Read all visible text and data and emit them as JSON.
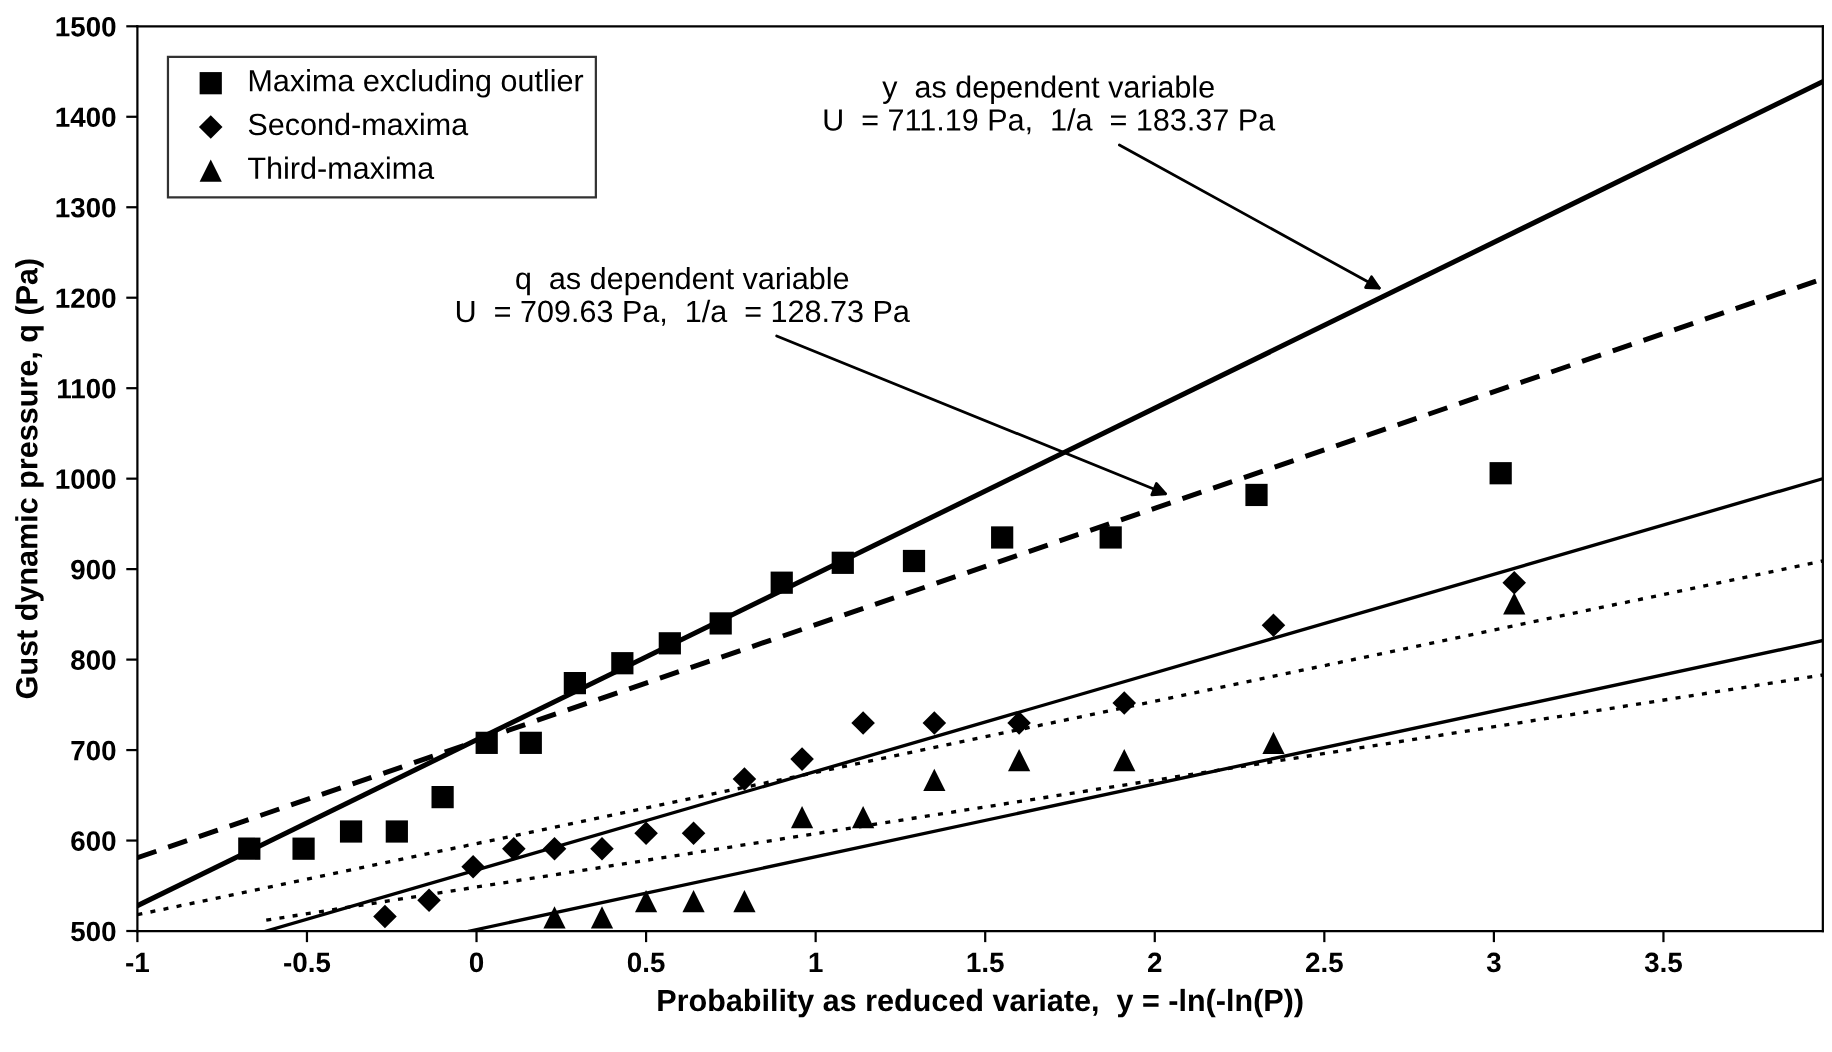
{
  "chart_data": {
    "type": "scatter",
    "xlabel": "Probability as reduced variate,  y = -ln(-ln(P))",
    "ylabel": "Gust dynamic pressure, q (Pa)",
    "xlim": [
      -1,
      3.97
    ],
    "ylim": [
      500,
      1500
    ],
    "xticks": [
      -1,
      -0.5,
      0,
      0.5,
      1,
      1.5,
      2,
      2.5,
      3,
      3.5
    ],
    "yticks": [
      500,
      600,
      700,
      800,
      900,
      1000,
      1100,
      1200,
      1300,
      1400,
      1500
    ],
    "grid": false,
    "legend": "top left",
    "annotations": [
      {
        "text": "y  as dependent variable\nU  = 711.19 Pa,  1/a  = 183.37 Pa",
        "x": 2.67,
        "y": 1209
      },
      {
        "text": "q  as dependent variable\nU  = 709.63 Pa,  1/a  = 128.73 Pa",
        "x": 2.04,
        "y": 982
      }
    ],
    "series": [
      {
        "name": "Maxima excluding outlier",
        "marker": "square",
        "color": "#000000",
        "x": [
          -0.67,
          -0.51,
          -0.37,
          -0.235,
          -0.1,
          0.03,
          0.16,
          0.29,
          0.43,
          0.57,
          0.72,
          0.9,
          1.08,
          1.29,
          1.55,
          1.87,
          2.3,
          3.02
        ],
        "values": [
          591,
          591,
          610,
          610,
          648,
          708,
          708,
          774,
          796,
          818,
          840,
          885,
          907,
          909,
          935,
          935,
          982,
          1006
        ]
      },
      {
        "name": "Second-maxima",
        "marker": "diamond",
        "color": "#000000",
        "x": [
          -0.27,
          -0.14,
          -0.01,
          0.11,
          0.23,
          0.37,
          0.5,
          0.64,
          0.79,
          0.96,
          1.14,
          1.35,
          1.6,
          1.91,
          2.35,
          3.06
        ],
        "values": [
          516,
          534,
          571,
          591,
          591,
          591,
          608,
          608,
          668,
          690,
          730,
          730,
          730,
          752,
          838,
          885
        ]
      },
      {
        "name": "Third-maxima",
        "marker": "triangle",
        "color": "#000000",
        "x": [
          0.23,
          0.37,
          0.5,
          0.64,
          0.79,
          0.96,
          1.14,
          1.35,
          1.6,
          1.91,
          2.35,
          3.06
        ],
        "values": [
          515,
          515,
          533,
          533,
          533,
          626,
          626,
          667,
          689,
          689,
          708,
          862
        ]
      },
      {
        "type": "line",
        "line_style": "solid",
        "color": "#000000",
        "x": [
          -1,
          3.97
        ],
        "values": [
          528,
          1439
        ]
      },
      {
        "type": "line",
        "line_style": "dashed",
        "color": "#000000",
        "x": [
          -1,
          3.97
        ],
        "values": [
          581,
          1221
        ]
      },
      {
        "type": "line",
        "line_style": "solid",
        "color": "#000000",
        "x": [
          -0.62,
          3.97
        ],
        "values": [
          500,
          1000
        ]
      },
      {
        "type": "line",
        "line_style": "dotted",
        "color": "#000000",
        "x": [
          -1,
          3.97
        ],
        "values": [
          518,
          909
        ]
      },
      {
        "type": "line",
        "line_style": "solid",
        "color": "#000000",
        "x": [
          -0.02,
          3.97
        ],
        "values": [
          500,
          821
        ]
      },
      {
        "type": "line",
        "line_style": "dotted",
        "color": "#000000",
        "x": [
          -0.62,
          3.97
        ],
        "values": [
          512,
          783
        ]
      }
    ]
  }
}
